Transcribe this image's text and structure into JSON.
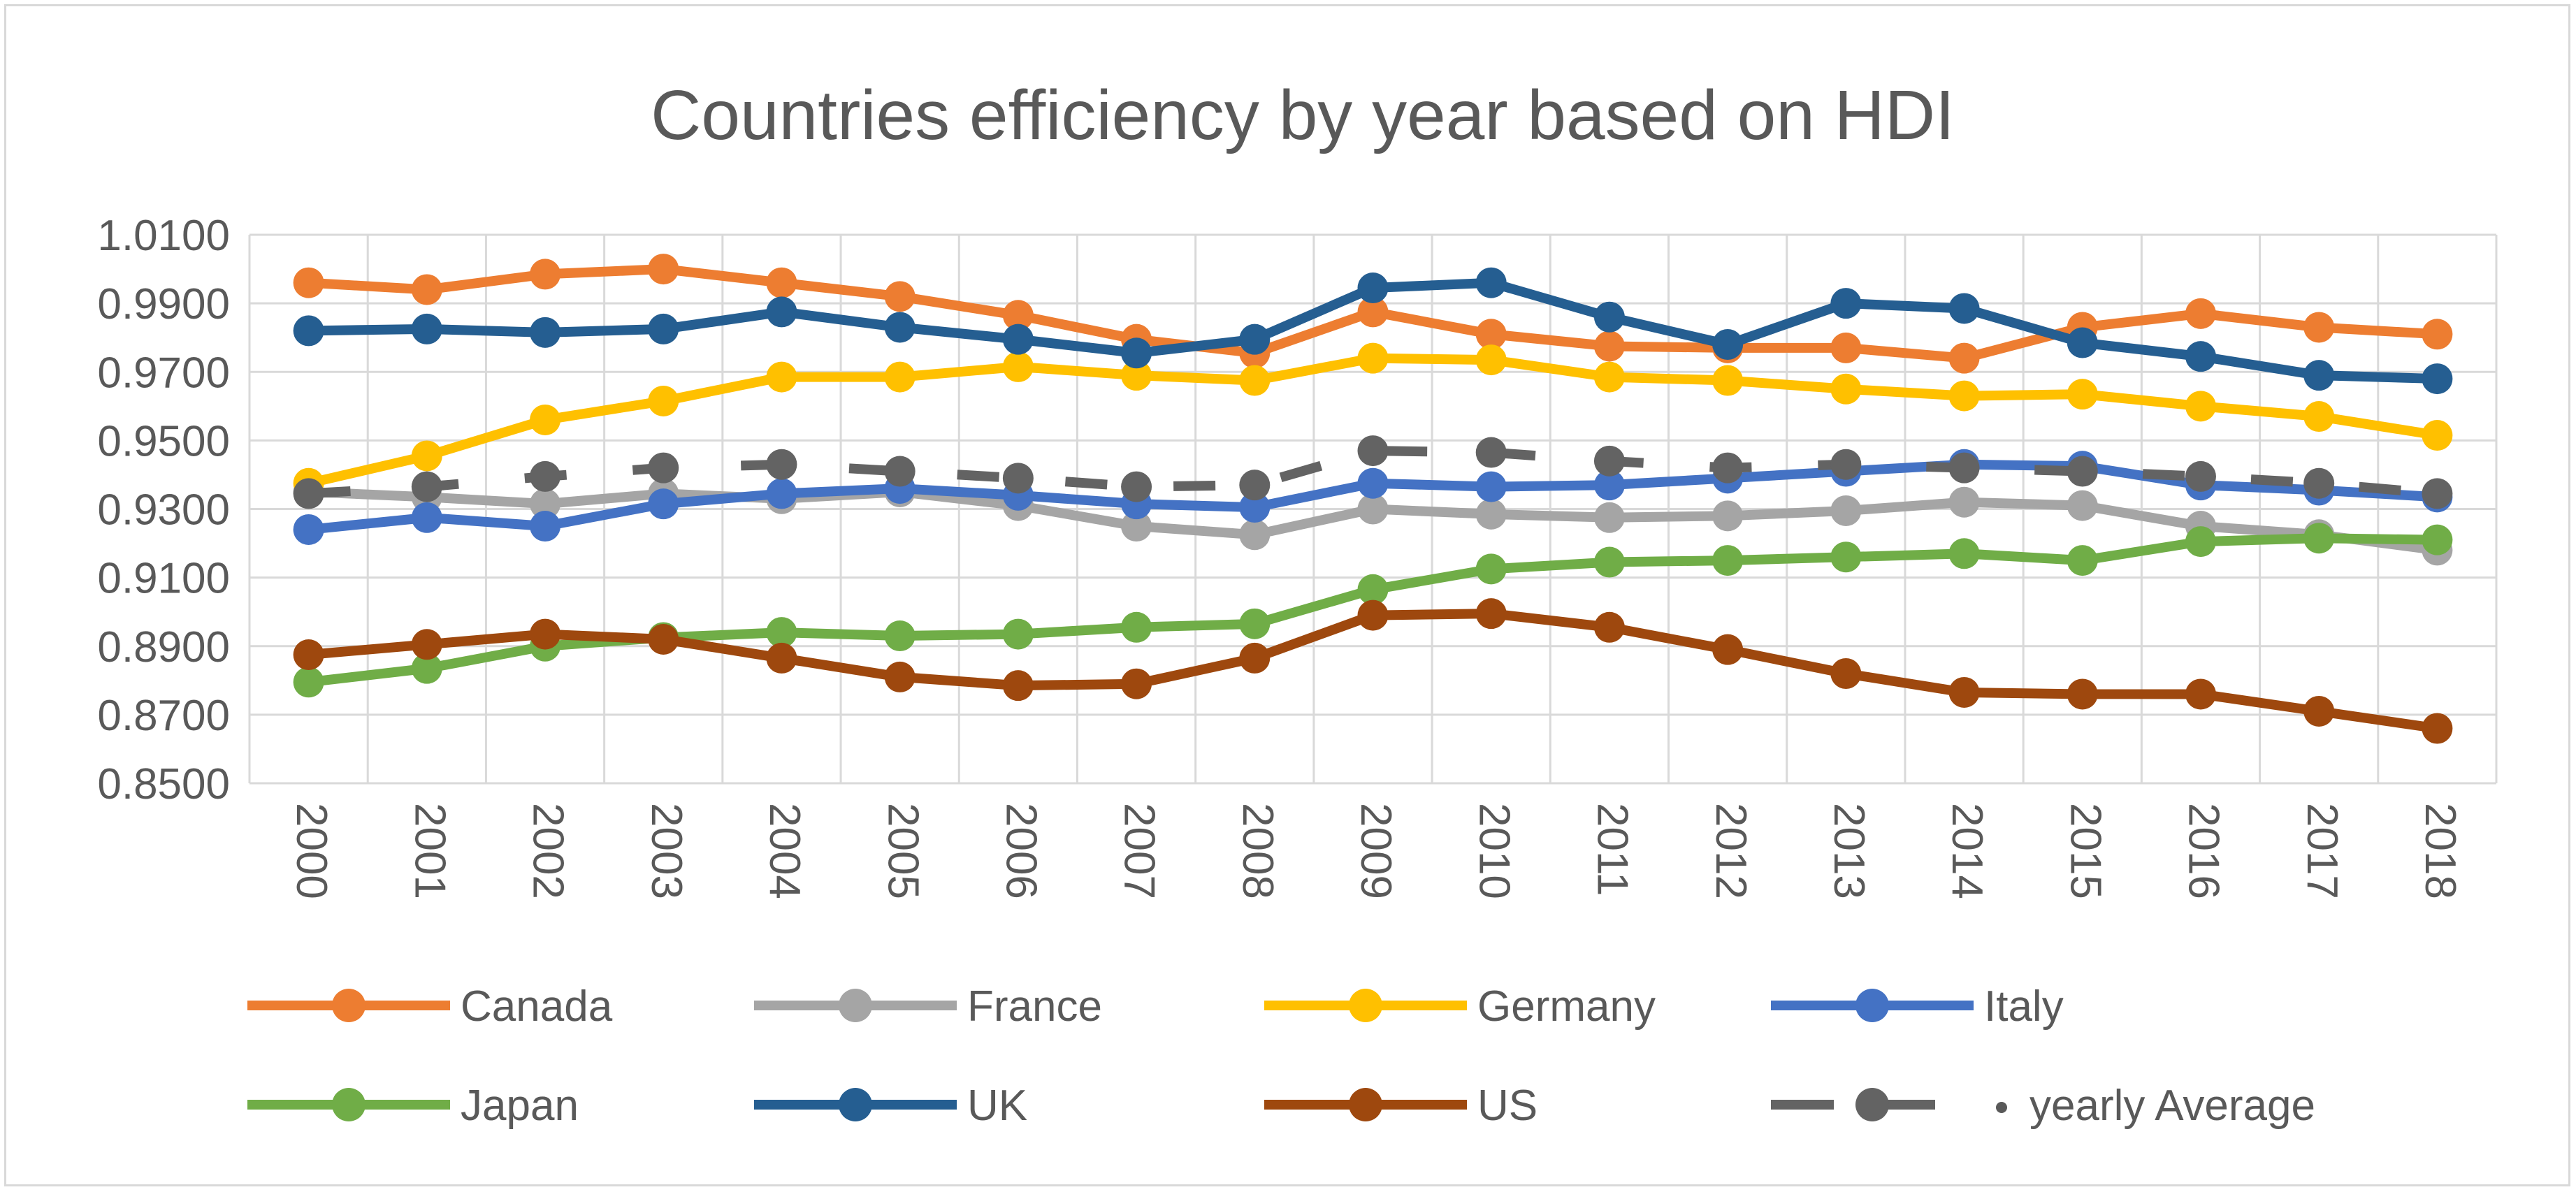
{
  "chart_data": {
    "type": "line",
    "title": "Countries efficiency by year based on HDI",
    "xlabel": "",
    "ylabel": "",
    "ylim": [
      0.85,
      1.01
    ],
    "yticks": [
      "0.8500",
      "0.8700",
      "0.8900",
      "0.9100",
      "0.9300",
      "0.9500",
      "0.9700",
      "0.9900",
      "1.0100"
    ],
    "ytick_values": [
      0.85,
      0.87,
      0.89,
      0.91,
      0.93,
      0.95,
      0.97,
      0.99,
      1.01
    ],
    "grid": true,
    "legend_position": "bottom",
    "categories": [
      "2000",
      "2001",
      "2002",
      "2003",
      "2004",
      "2005",
      "2006",
      "2007",
      "2008",
      "2009",
      "2010",
      "2011",
      "2012",
      "2013",
      "2014",
      "2015",
      "2016",
      "2017",
      "2018"
    ],
    "series": [
      {
        "name": "Canada",
        "color": "#ED7D31",
        "dashed": false,
        "values": [
          0.996,
          0.994,
          0.9985,
          1.0,
          0.996,
          0.992,
          0.9865,
          0.9795,
          0.9755,
          0.9875,
          0.981,
          0.9775,
          0.977,
          0.977,
          0.974,
          0.983,
          0.987,
          0.983,
          0.981
        ]
      },
      {
        "name": "France",
        "color": "#A5A5A5",
        "dashed": false,
        "values": [
          0.935,
          0.9335,
          0.9315,
          0.9345,
          0.933,
          0.935,
          0.931,
          0.925,
          0.9225,
          0.93,
          0.9285,
          0.9275,
          0.928,
          0.9295,
          0.932,
          0.931,
          0.925,
          0.9225,
          0.918
        ]
      },
      {
        "name": "Germany",
        "color": "#FFC000",
        "dashed": false,
        "values": [
          0.9375,
          0.9455,
          0.956,
          0.9615,
          0.9685,
          0.9685,
          0.9715,
          0.969,
          0.9675,
          0.974,
          0.9735,
          0.9685,
          0.9675,
          0.965,
          0.963,
          0.9635,
          0.96,
          0.957,
          0.9515
        ]
      },
      {
        "name": "Italy",
        "color": "#4472C4",
        "dashed": false,
        "values": [
          0.924,
          0.9275,
          0.925,
          0.9315,
          0.9345,
          0.936,
          0.934,
          0.9315,
          0.9305,
          0.9375,
          0.9365,
          0.937,
          0.939,
          0.941,
          0.943,
          0.9425,
          0.937,
          0.9355,
          0.9335
        ]
      },
      {
        "name": "Japan",
        "color": "#70AD47",
        "dashed": false,
        "values": [
          0.8795,
          0.8835,
          0.89,
          0.8925,
          0.894,
          0.893,
          0.8935,
          0.8955,
          0.8965,
          0.9065,
          0.9125,
          0.9145,
          0.915,
          0.916,
          0.917,
          0.915,
          0.9205,
          0.9215,
          0.921
        ]
      },
      {
        "name": "UK",
        "color": "#255E91",
        "dashed": false,
        "values": [
          0.982,
          0.9825,
          0.9815,
          0.9825,
          0.9875,
          0.983,
          0.9795,
          0.9755,
          0.9795,
          0.9945,
          0.996,
          0.986,
          0.978,
          0.99,
          0.9885,
          0.9785,
          0.9745,
          0.969,
          0.968
        ]
      },
      {
        "name": "US",
        "color": "#9E480E",
        "dashed": false,
        "values": [
          0.8875,
          0.8905,
          0.8935,
          0.892,
          0.8865,
          0.881,
          0.8785,
          0.879,
          0.8865,
          0.899,
          0.8995,
          0.8955,
          0.889,
          0.882,
          0.8765,
          0.876,
          0.876,
          0.871,
          0.866
        ]
      },
      {
        "name": "yearly Average",
        "color": "#636363",
        "dashed": true,
        "values": [
          0.9345,
          0.9365,
          0.9395,
          0.942,
          0.943,
          0.941,
          0.939,
          0.9365,
          0.937,
          0.947,
          0.9465,
          0.944,
          0.942,
          0.943,
          0.942,
          0.941,
          0.9395,
          0.9375,
          0.9345
        ]
      }
    ]
  },
  "legend": {
    "items": [
      {
        "label": "Canada",
        "color": "#ED7D31",
        "dashed": false
      },
      {
        "label": "France",
        "color": "#A5A5A5",
        "dashed": false
      },
      {
        "label": "Germany",
        "color": "#FFC000",
        "dashed": false
      },
      {
        "label": "Italy",
        "color": "#4472C4",
        "dashed": false
      },
      {
        "label": "Japan",
        "color": "#70AD47",
        "dashed": false
      },
      {
        "label": "UK",
        "color": "#255E91",
        "dashed": false
      },
      {
        "label": "US",
        "color": "#9E480E",
        "dashed": false
      },
      {
        "label": "yearly Average",
        "color": "#636363",
        "dashed": true
      }
    ]
  }
}
